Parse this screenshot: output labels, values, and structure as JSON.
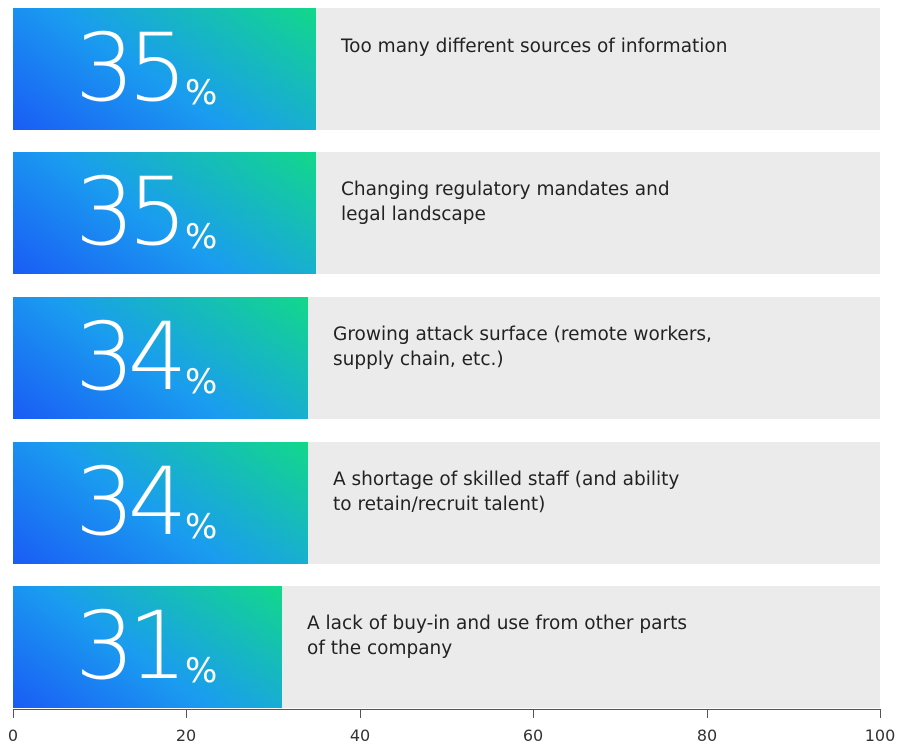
{
  "chart_data": {
    "type": "bar",
    "orientation": "horizontal",
    "xlim": [
      0,
      100
    ],
    "x_ticks": [
      0,
      20,
      40,
      60,
      80,
      100
    ],
    "value_suffix": "%",
    "categories": [
      "Too many different sources of information",
      "Changing regulatory mandates and\nlegal landscape",
      "Growing attack surface (remote workers,\nsupply chain, etc.)",
      "A shortage of skilled staff (and ability\nto retain/recruit talent)",
      "A lack of buy-in and use from other parts\nof the company"
    ],
    "values": [
      35,
      35,
      34,
      34,
      31
    ],
    "colors": {
      "gradient_start": "#1a5cf5",
      "gradient_mid": "#1a9cf0",
      "gradient_end": "#12d88a",
      "track": "#ebebeb"
    }
  }
}
